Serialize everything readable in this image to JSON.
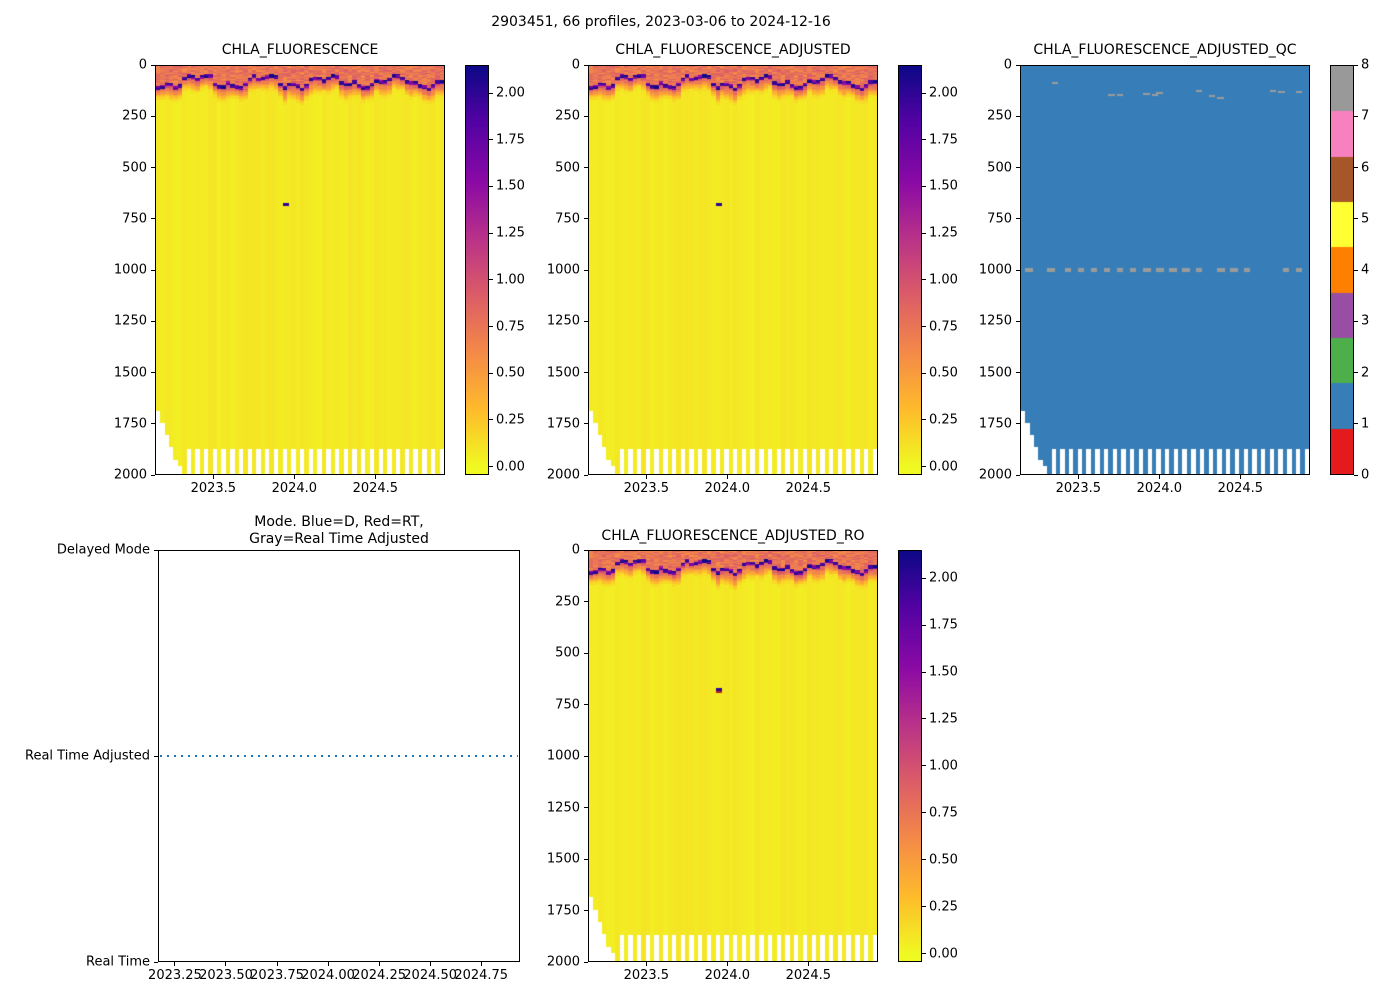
{
  "figure": {
    "title": "2903451, 66 profiles, 2023-03-06 to 2024-12-16",
    "background": "#ffffff",
    "text_color": "#000000"
  },
  "chart_data": [
    {
      "type": "heatmap",
      "title": "CHLA_FLUORESCENCE",
      "x_range": [
        2023.14,
        2024.93
      ],
      "x_ticks": [
        "2023.5",
        "2024.0",
        "2024.5"
      ],
      "y_range": [
        0,
        2000
      ],
      "y_label_implied": "depth (m), 0 at surface",
      "y_ticks": [
        "0",
        "250",
        "500",
        "750",
        "1000",
        "1250",
        "1500",
        "1750",
        "2000"
      ],
      "n_profiles": 66,
      "colormap": "plasma_r",
      "value_range": [
        -0.045,
        2.15
      ],
      "colorbar_ticks": [
        "0.00",
        "0.25",
        "0.50",
        "0.75",
        "1.00",
        "1.25",
        "1.50",
        "1.75",
        "2.00"
      ],
      "features": {
        "background_value": 0.07,
        "surface_band_depth_m": [
          0,
          170
        ],
        "deep_chl_max_depth_m": [
          48,
          115
        ],
        "deep_chl_max_value": 2.0,
        "anomaly_point": {
          "time_frac": 0.447,
          "depth_m": 680,
          "value": 2.15,
          "color": "#2b0593"
        },
        "shallow_early_profile_bottoms_m": [
          1690,
          1750,
          1810,
          1870,
          1930,
          1960
        ],
        "alternating_profile_bottom_m": 1875
      }
    },
    {
      "type": "heatmap",
      "title": "CHLA_FLUORESCENCE_ADJUSTED",
      "x_range": [
        2023.14,
        2024.93
      ],
      "x_ticks": [
        "2023.5",
        "2024.0",
        "2024.5"
      ],
      "y_range": [
        0,
        2000
      ],
      "y_ticks": [
        "0",
        "250",
        "500",
        "750",
        "1000",
        "1250",
        "1500",
        "1750",
        "2000"
      ],
      "n_profiles": 66,
      "colormap": "plasma_r",
      "value_range": [
        -0.045,
        2.15
      ],
      "colorbar_ticks": [
        "0.00",
        "0.25",
        "0.50",
        "0.75",
        "1.00",
        "1.25",
        "1.50",
        "1.75",
        "2.00"
      ],
      "features": {
        "background_value": 0.07,
        "surface_band_depth_m": [
          0,
          170
        ],
        "deep_chl_max_depth_m": [
          48,
          115
        ],
        "anomaly_point": {
          "time_frac": 0.447,
          "depth_m": 680,
          "value": 2.15,
          "color": "#2b0593"
        },
        "shallow_early_profile_bottoms_m": [
          1690,
          1750,
          1810,
          1870,
          1930,
          1960
        ],
        "alternating_profile_bottom_m": 1875
      }
    },
    {
      "type": "qc_heatmap",
      "title": "CHLA_FLUORESCENCE_ADJUSTED_QC",
      "x_range": [
        2023.14,
        2024.93
      ],
      "x_ticks": [
        "2023.5",
        "2024.0",
        "2024.5"
      ],
      "y_range": [
        0,
        2000
      ],
      "y_ticks": [
        "0",
        "250",
        "500",
        "750",
        "1000",
        "1250",
        "1500",
        "1750",
        "2000"
      ],
      "n_profiles": 66,
      "colorbar_ticks": [
        "0",
        "1",
        "2",
        "3",
        "4",
        "5",
        "6",
        "7",
        "8"
      ],
      "qc_colors": [
        "#e41a1c",
        "#377eb8",
        "#4daf4a",
        "#984ea3",
        "#ff7f00",
        "#ffff33",
        "#a65628",
        "#f781bf",
        "#999999"
      ],
      "dominant_qc_value": 1,
      "dominant_qc_color": "#377eb8",
      "gray_qc_value": 8,
      "gray_qc_color": "#9b9b9b",
      "features": {
        "gray_row": {
          "depth_m": 1000,
          "profile_cols": [
            1,
            6,
            10,
            13,
            16,
            19,
            22,
            25,
            28,
            31,
            34,
            37,
            40,
            45,
            48,
            51,
            60,
            63
          ]
        },
        "gray_scatter": [
          [
            7,
            80
          ],
          [
            20,
            135
          ],
          [
            22,
            138
          ],
          [
            28,
            132
          ],
          [
            30,
            138
          ],
          [
            31,
            125
          ],
          [
            40,
            118
          ],
          [
            43,
            140
          ],
          [
            45,
            150
          ],
          [
            57,
            120
          ],
          [
            59,
            122
          ],
          [
            63,
            122
          ]
        ],
        "shallow_early_profile_bottoms_m": [
          1690,
          1750,
          1810,
          1870,
          1930,
          1960
        ],
        "alternating_profile_bottom_m": 1875
      }
    },
    {
      "type": "line",
      "title_lines": [
        "Mode. Blue=D, Red=RT,",
        "Gray=Real Time Adjusted"
      ],
      "x_range": [
        2023.167,
        2024.94
      ],
      "x_ticks": [
        "2023.25",
        "2023.50",
        "2023.75",
        "2024.00",
        "2024.25",
        "2024.50",
        "2024.75"
      ],
      "y_categories": [
        {
          "label": "Delayed Mode",
          "frac": 0
        },
        {
          "label": "Real Time Adjusted",
          "frac": 0.5
        },
        {
          "label": "Real Time",
          "frac": 1
        }
      ],
      "series": [
        {
          "name": "processing-mode",
          "constant_value": "Real Time Adjusted",
          "color": "#1f77b4",
          "linestyle": "dotted",
          "extent": "full-width"
        }
      ]
    },
    {
      "type": "heatmap",
      "title": "CHLA_FLUORESCENCE_ADJUSTED_RO",
      "x_range": [
        2023.14,
        2024.93
      ],
      "x_ticks": [
        "2023.5",
        "2024.0",
        "2024.5"
      ],
      "y_range": [
        0,
        2000
      ],
      "y_ticks": [
        "0",
        "250",
        "500",
        "750",
        "1000",
        "1250",
        "1500",
        "1750",
        "2000"
      ],
      "n_profiles": 66,
      "colormap": "plasma_r",
      "value_range": [
        -0.045,
        2.15
      ],
      "colorbar_ticks": [
        "0.00",
        "0.25",
        "0.50",
        "0.75",
        "1.00",
        "1.25",
        "1.50",
        "1.75",
        "2.00"
      ],
      "features": {
        "background_value": 0.07,
        "surface_band_depth_m": [
          0,
          170
        ],
        "deep_chl_max_depth_m": [
          48,
          115
        ],
        "anomaly_point": {
          "time_frac": 0.447,
          "depth_m": 680,
          "value": 2.15,
          "color": "#2b0593",
          "secondary_color": "#b22222"
        },
        "shallow_early_profile_bottoms_m": [
          1690,
          1750,
          1810,
          1870,
          1930,
          1960
        ],
        "alternating_profile_bottom_m": 1875
      }
    }
  ]
}
